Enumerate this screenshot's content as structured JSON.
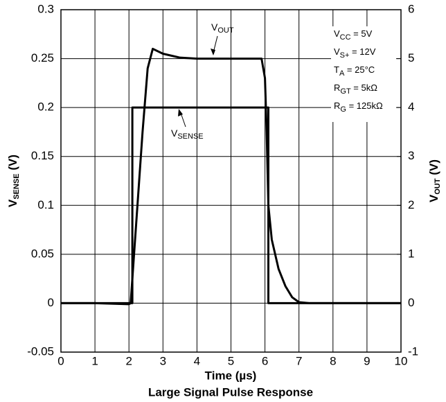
{
  "chart_data": {
    "type": "line",
    "title": "Large Signal Pulse Response",
    "xlabel": "Time (µs)",
    "ylabel": {
      "base": "V",
      "sub": "SENSE",
      "tail": " (V)"
    },
    "y2label": {
      "base": "V",
      "sub": "OUT",
      "tail": " (V)"
    },
    "xlim": [
      0,
      10
    ],
    "xticks": [
      0,
      1,
      2,
      3,
      4,
      5,
      6,
      7,
      8,
      9,
      10
    ],
    "ylim": [
      -0.05,
      0.3
    ],
    "yticks": [
      -0.05,
      0,
      0.05,
      0.1,
      0.15,
      0.2,
      0.25,
      0.3
    ],
    "y2lim": [
      -1,
      6
    ],
    "y2ticks": [
      -1,
      0,
      1,
      2,
      3,
      4,
      5,
      6
    ],
    "grid": true,
    "series": [
      {
        "name": "V",
        "name_sub": "OUT",
        "color": "#000000",
        "axis": "y2",
        "x": [
          0,
          1,
          2.0,
          2.05,
          2.2,
          2.4,
          2.55,
          2.7,
          3.0,
          3.5,
          4,
          5,
          5.9,
          6.0,
          6.05,
          6.1,
          6.2,
          6.4,
          6.6,
          6.8,
          7,
          7.3,
          10
        ],
        "values": [
          0,
          0,
          -0.02,
          0,
          1.5,
          3.5,
          4.8,
          5.2,
          5.1,
          5.02,
          5.0,
          5.0,
          5.0,
          4.6,
          3.5,
          2.0,
          1.3,
          0.7,
          0.35,
          0.12,
          0.02,
          0,
          0
        ]
      },
      {
        "name": "V",
        "name_sub": "SENSE",
        "color": "#000000",
        "x": [
          0,
          2.1,
          2.1,
          6.1,
          6.1,
          10
        ],
        "values": [
          0,
          0,
          0.2,
          0.2,
          0,
          0
        ]
      }
    ],
    "annotations": [
      {
        "base": "V",
        "sub": "CC",
        "tail": " = 5V"
      },
      {
        "base": "V",
        "sub": "S+",
        "tail": " = 12V"
      },
      {
        "base": "T",
        "sub": "A",
        "tail": " = 25°C"
      },
      {
        "base": "R",
        "sub": "GT",
        "tail": " = 5kΩ"
      },
      {
        "base": "R",
        "sub": "G",
        "tail": " = 125kΩ"
      }
    ]
  }
}
